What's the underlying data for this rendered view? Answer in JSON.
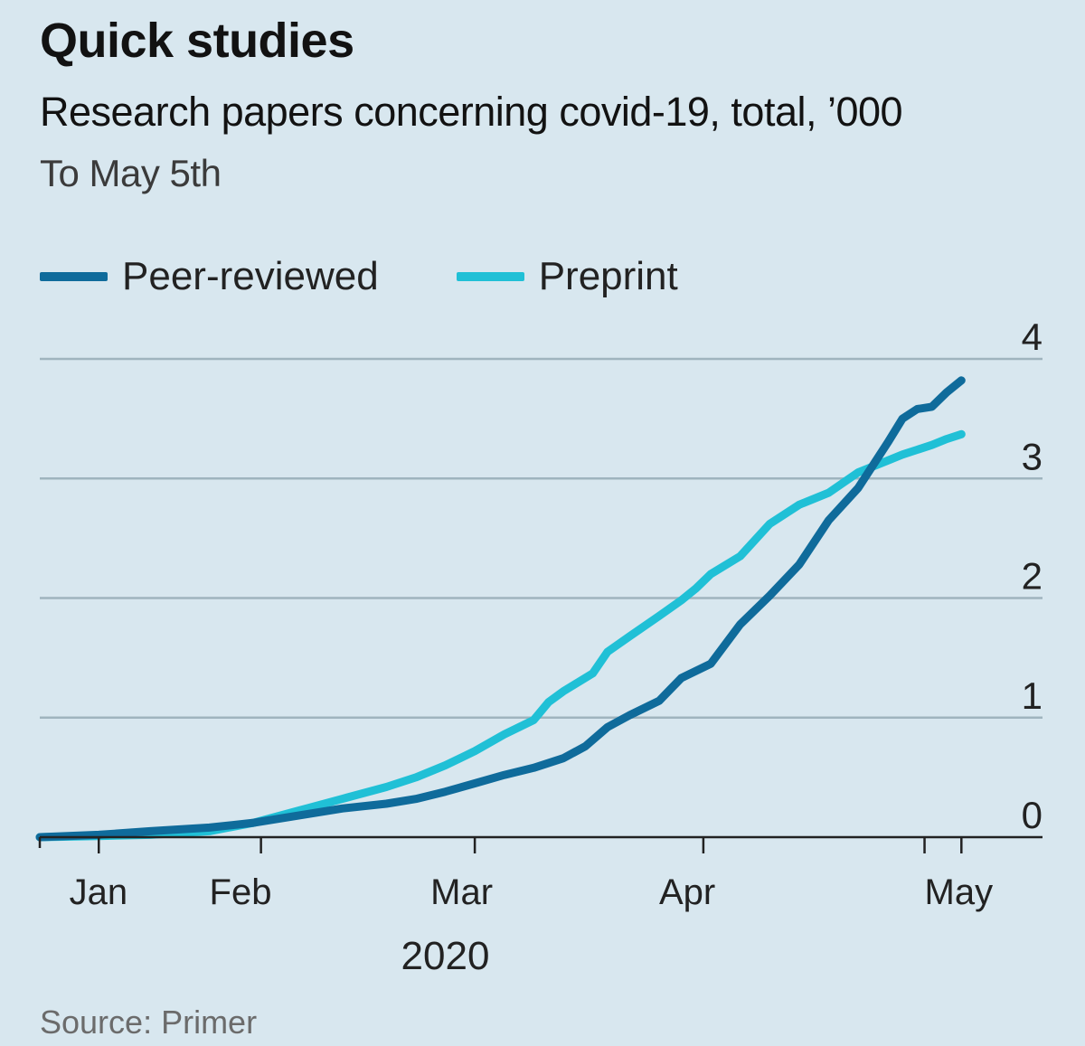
{
  "header": {
    "title": "Quick studies",
    "subtitle": "Research papers concerning covid-19, total, ’000",
    "note": "To May 5th"
  },
  "legend": {
    "items": [
      {
        "label": "Peer-reviewed",
        "color": "#0f6b9b"
      },
      {
        "label": "Preprint",
        "color": "#20c0d6"
      }
    ]
  },
  "source": "Source: Primer",
  "colors": {
    "background": "#d8e7ef",
    "grid": "#9fb4be",
    "axis": "#222222"
  },
  "chart_data": {
    "type": "line",
    "title": "Quick studies",
    "subtitle": "Research papers concerning covid-19, total, ’000",
    "note": "To May 5th",
    "x_unit": "days since Jan 1st 2020",
    "x_ticks": [
      9,
      31,
      60,
      91,
      121,
      126
    ],
    "x_labels": [
      {
        "label": "Jan",
        "x": 5
      },
      {
        "label": "Feb",
        "x": 24
      },
      {
        "label": "Mar",
        "x": 54
      },
      {
        "label": "Apr",
        "x": 85
      },
      {
        "label": "May",
        "x": 121
      }
    ],
    "xlim": [
      1,
      137
    ],
    "year_label": "2020",
    "year_x": 56,
    "y_ticks": [
      0,
      1,
      2,
      3,
      4
    ],
    "ylim": [
      0,
      4
    ],
    "ylabel": "’000",
    "series": [
      {
        "name": "Peer-reviewed",
        "color": "#0f6b9b",
        "x": [
          1,
          9,
          16,
          24,
          30,
          36,
          42,
          48,
          52,
          56,
          60,
          64,
          68,
          72,
          75,
          78,
          81,
          85,
          88,
          92,
          96,
          100,
          104,
          108,
          112,
          116,
          118,
          120,
          122,
          124,
          126
        ],
        "y": [
          0.0,
          0.02,
          0.05,
          0.08,
          0.12,
          0.18,
          0.24,
          0.28,
          0.32,
          0.38,
          0.45,
          0.52,
          0.58,
          0.66,
          0.76,
          0.92,
          1.02,
          1.14,
          1.33,
          1.45,
          1.78,
          2.02,
          2.28,
          2.65,
          2.92,
          3.3,
          3.5,
          3.58,
          3.6,
          3.72,
          3.82
        ]
      },
      {
        "name": "Preprint",
        "color": "#20c0d6",
        "x": [
          1,
          9,
          16,
          24,
          30,
          36,
          42,
          48,
          52,
          56,
          60,
          64,
          68,
          70,
          72,
          76,
          78,
          81,
          85,
          88,
          90,
          92,
          96,
          100,
          104,
          108,
          112,
          116,
          118,
          120,
          122,
          124,
          126
        ],
        "y": [
          0.0,
          0.01,
          0.02,
          0.05,
          0.12,
          0.22,
          0.32,
          0.42,
          0.5,
          0.6,
          0.72,
          0.86,
          0.98,
          1.13,
          1.22,
          1.37,
          1.55,
          1.68,
          1.85,
          1.98,
          2.08,
          2.2,
          2.35,
          2.62,
          2.78,
          2.88,
          3.05,
          3.15,
          3.2,
          3.24,
          3.28,
          3.33,
          3.37
        ]
      }
    ]
  }
}
